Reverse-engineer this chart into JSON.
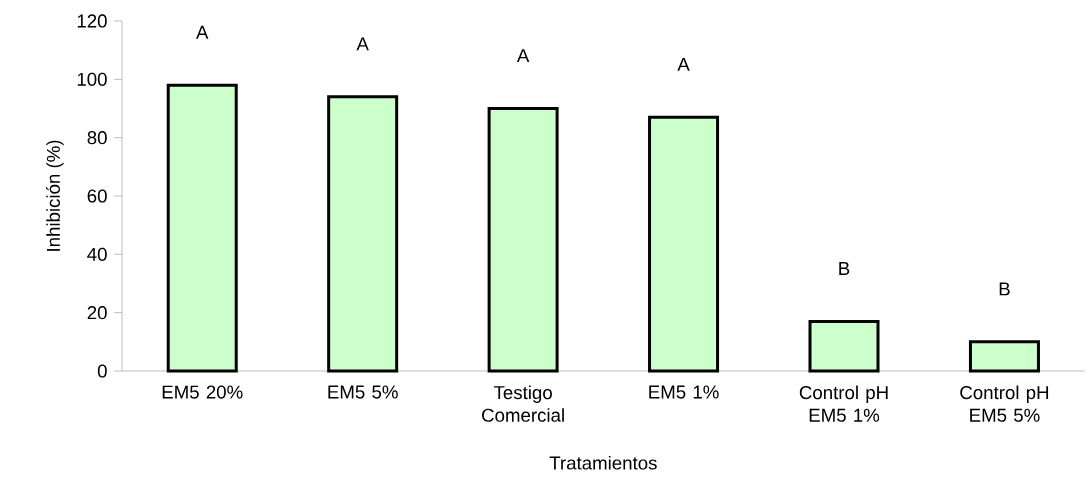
{
  "chart_data": {
    "type": "bar",
    "xlabel": "Tratamientos",
    "ylabel": "Inhibición (%)",
    "categories": [
      "EM5 20%",
      "EM5 5%",
      "Testigo Comercial",
      "EM5 1%",
      "Control pH EM5 1%",
      "Control pH EM5 5%"
    ],
    "values": [
      98,
      94,
      90,
      87,
      17,
      10
    ],
    "color": "#ccffcc",
    "ylim": [
      0,
      120
    ],
    "yticks": [
      0,
      20,
      40,
      60,
      80,
      100,
      120
    ],
    "grid": false,
    "annotations": [
      "A",
      "A",
      "A",
      "A",
      "B",
      "B"
    ]
  }
}
